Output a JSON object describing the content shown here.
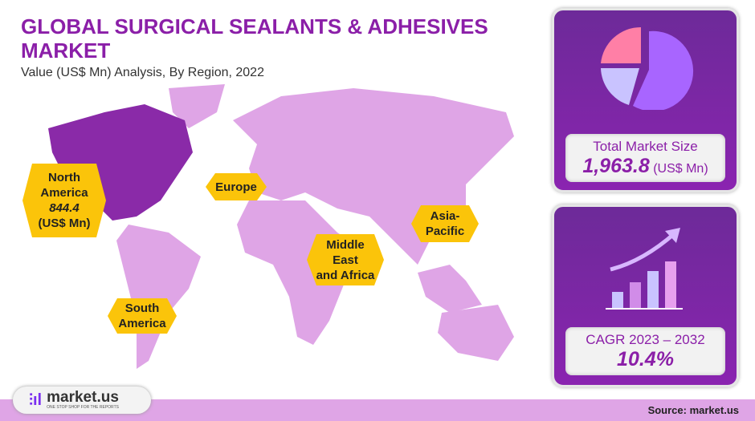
{
  "header": {
    "title": "GLOBAL SURGICAL SEALANTS & ADHESIVES MARKET",
    "subtitle": "Value (US$ Mn) Analysis, By Region, 2022"
  },
  "regions": {
    "north_america": {
      "name_line1": "North",
      "name_line2": "America",
      "value": "844.4",
      "unit": "(US$ Mn)"
    },
    "europe": {
      "name": "Europe"
    },
    "asia_pacific": {
      "name_line1": "Asia-",
      "name_line2": "Pacific"
    },
    "mea": {
      "name_line1": "Middle",
      "name_line2": "East",
      "name_line3": "and Africa"
    },
    "south_america": {
      "name_line1": "South",
      "name_line2": "America"
    }
  },
  "market_size": {
    "label": "Total Market Size",
    "value": "1,963.8",
    "unit": "(US$ Mn)",
    "icon": "pie-chart-icon"
  },
  "cagr": {
    "label": "CAGR 2023 – 2032",
    "value": "10.4%",
    "icon": "growth-chart-icon"
  },
  "colors": {
    "accent": "#8b1fa8",
    "highlight": "#fbc40a",
    "map": "#dfa5e6",
    "north_america": "#8a2aa8"
  },
  "footer": {
    "source": "Source: market.us",
    "logo_text": "market.us",
    "logo_tagline": "ONE STOP SHOP FOR THE REPORTS"
  }
}
